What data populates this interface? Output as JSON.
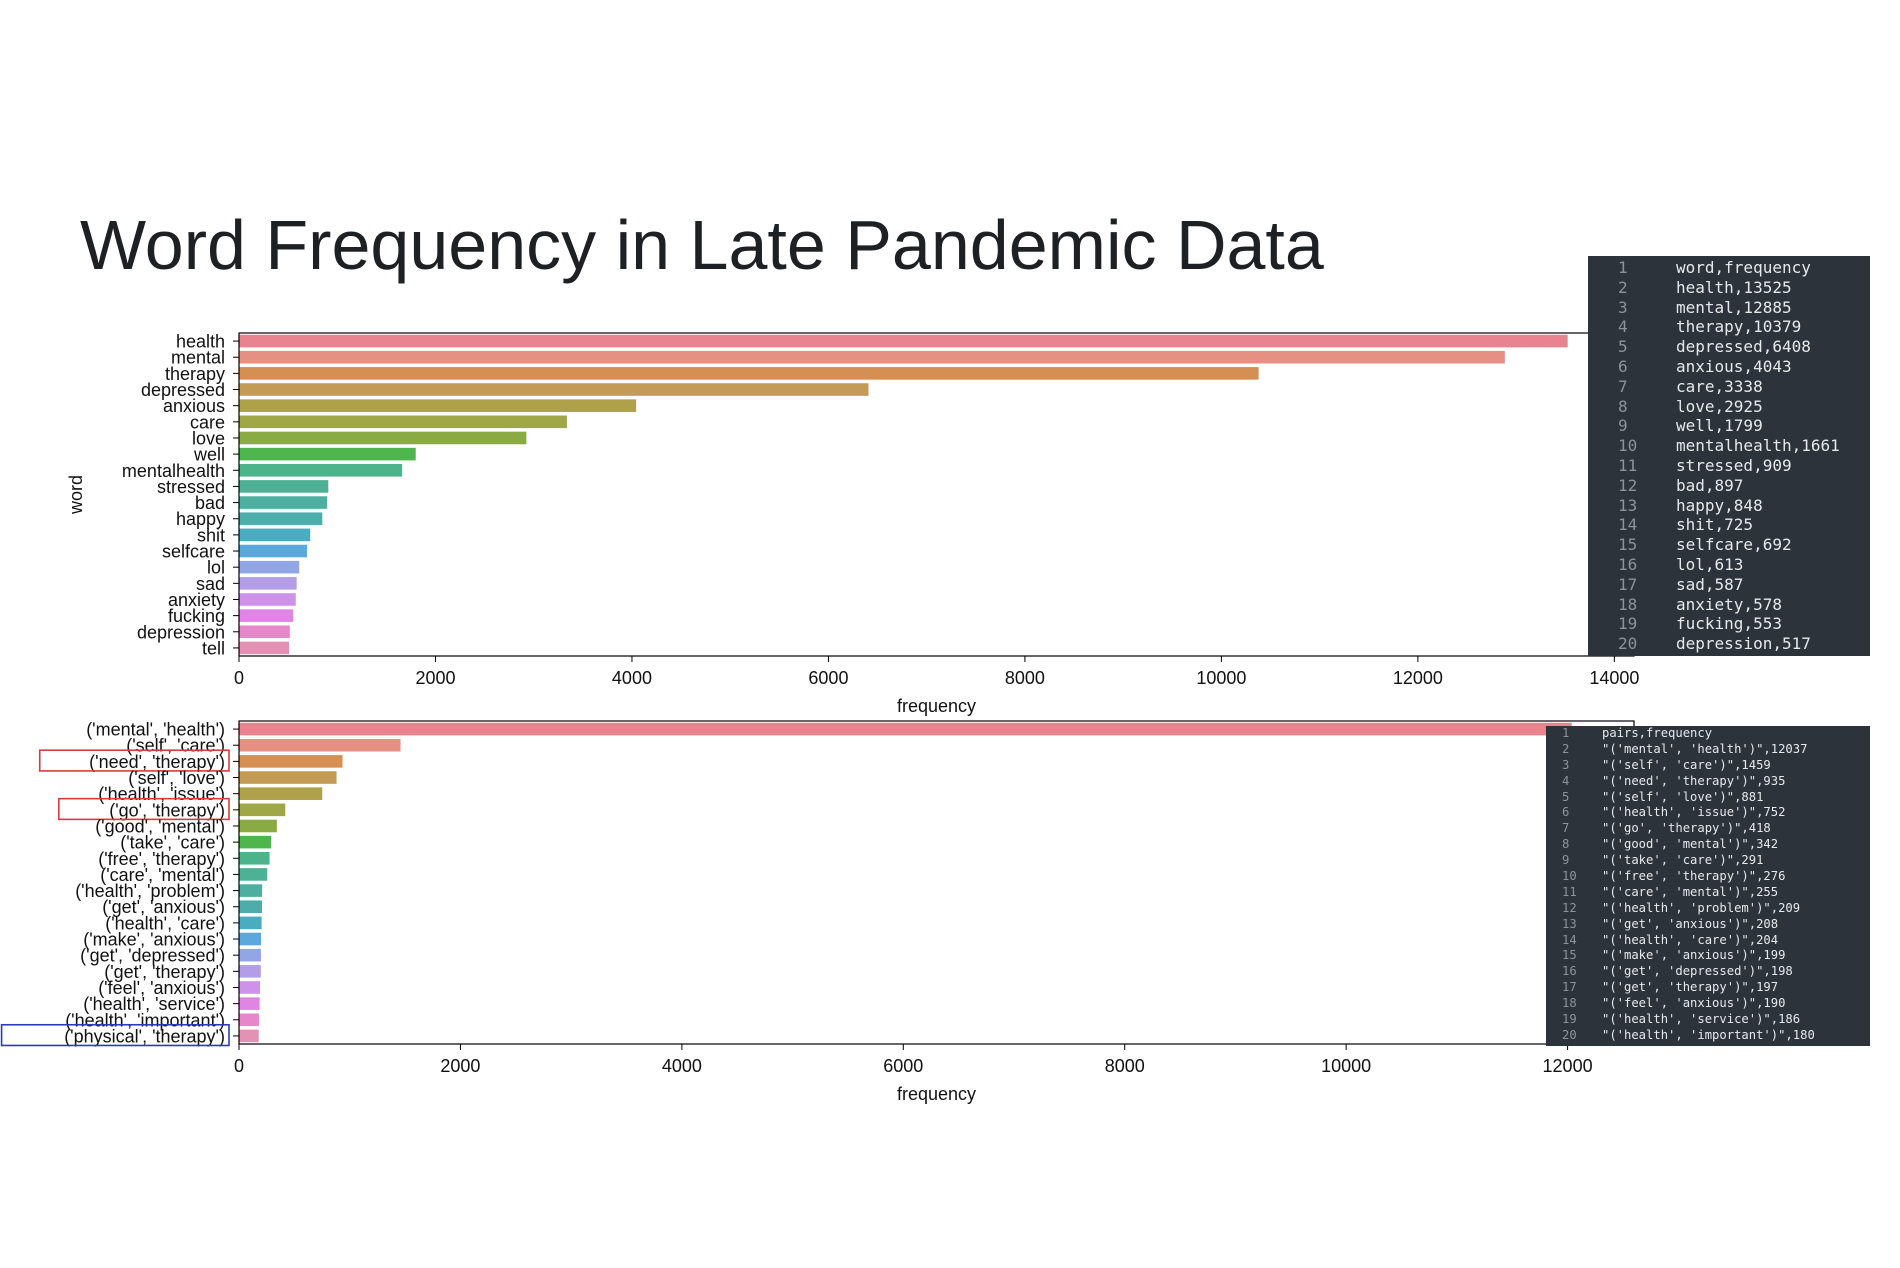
{
  "title": "Word Frequency in Late Pandemic Data",
  "chart_data": [
    {
      "type": "bar",
      "orientation": "horizontal",
      "ylabel": "word",
      "xlabel": "frequency",
      "xlim": [
        0,
        14200
      ],
      "xticks": [
        0,
        2000,
        4000,
        6000,
        8000,
        10000,
        12000,
        14000
      ],
      "categories": [
        "health",
        "mental",
        "therapy",
        "depressed",
        "anxious",
        "care",
        "love",
        "well",
        "mentalhealth",
        "stressed",
        "bad",
        "happy",
        "shit",
        "selfcare",
        "lol",
        "sad",
        "anxiety",
        "fucking",
        "depression",
        "tell"
      ],
      "values": [
        13525,
        12885,
        10379,
        6408,
        4043,
        3338,
        2925,
        1799,
        1661,
        909,
        897,
        848,
        725,
        692,
        613,
        587,
        578,
        553,
        517,
        510
      ],
      "colors": [
        "#e8838f",
        "#e69083",
        "#d68f53",
        "#c39b56",
        "#aea149",
        "#9fa747",
        "#8aaa44",
        "#4fb64d",
        "#4db38b",
        "#4db195",
        "#4cafa0",
        "#4cadaa",
        "#4aacc1",
        "#5aa8dc",
        "#92a6e6",
        "#b49de8",
        "#cf92ea",
        "#e085e3",
        "#e587c9",
        "#e391b5"
      ]
    },
    {
      "type": "bar",
      "orientation": "horizontal",
      "xlabel": "frequency",
      "xlim": [
        0,
        12600
      ],
      "xticks": [
        0,
        2000,
        4000,
        6000,
        8000,
        10000,
        12000
      ],
      "categories": [
        "('mental', 'health')",
        "('self', 'care')",
        "('need', 'therapy')",
        "('self', 'love')",
        "('health', 'issue')",
        "('go', 'therapy')",
        "('good', 'mental')",
        "('take', 'care')",
        "('free', 'therapy')",
        "('care', 'mental')",
        "('health', 'problem')",
        "('get', 'anxious')",
        "('health', 'care')",
        "('make', 'anxious')",
        "('get', 'depressed')",
        "('get', 'therapy')",
        "('feel', 'anxious')",
        "('health', 'service')",
        "('health', 'important')",
        "('physical', 'therapy')"
      ],
      "values": [
        12037,
        1459,
        935,
        881,
        752,
        418,
        342,
        291,
        276,
        255,
        209,
        208,
        204,
        199,
        198,
        197,
        190,
        186,
        180,
        178
      ],
      "colors": [
        "#e8838f",
        "#e69083",
        "#d68f53",
        "#c39b56",
        "#aea149",
        "#9fa747",
        "#8aaa44",
        "#4fb64d",
        "#4db38b",
        "#4db195",
        "#4cafa0",
        "#4cadaa",
        "#4aacc1",
        "#5aa8dc",
        "#92a6e6",
        "#b49de8",
        "#cf92ea",
        "#e085e3",
        "#e587c9",
        "#e391b5"
      ],
      "highlighted_labels": [
        {
          "label": "('need', 'therapy')",
          "color": "#d93b3b"
        },
        {
          "label": "('go', 'therapy')",
          "color": "#d93b3b"
        },
        {
          "label": "('physical', 'therapy')",
          "color": "#2b3bb8"
        }
      ]
    }
  ],
  "code_panels": [
    {
      "lines": [
        "word,frequency",
        "health,13525",
        "mental,12885",
        "therapy,10379",
        "depressed,6408",
        "anxious,4043",
        "care,3338",
        "love,2925",
        "well,1799",
        "mentalhealth,1661",
        "stressed,909",
        "bad,897",
        "happy,848",
        "shit,725",
        "selfcare,692",
        "lol,613",
        "sad,587",
        "anxiety,578",
        "fucking,553",
        "depression,517"
      ]
    },
    {
      "lines": [
        "pairs,frequency",
        "\"('mental', 'health')\",12037",
        "\"('self', 'care')\",1459",
        "\"('need', 'therapy')\",935",
        "\"('self', 'love')\",881",
        "\"('health', 'issue')\",752",
        "\"('go', 'therapy')\",418",
        "\"('good', 'mental')\",342",
        "\"('take', 'care')\",291",
        "\"('free', 'therapy')\",276",
        "\"('care', 'mental')\",255",
        "\"('health', 'problem')\",209",
        "\"('get', 'anxious')\",208",
        "\"('health', 'care')\",204",
        "\"('make', 'anxious')\",199",
        "\"('get', 'depressed')\",198",
        "\"('get', 'therapy')\",197",
        "\"('feel', 'anxious')\",190",
        "\"('health', 'service')\",186",
        "\"('health', 'important')\",180"
      ]
    }
  ],
  "colors": {
    "panel_background": "#2d333b",
    "panel_text": "#e6e9ec",
    "line_numbers": "#8b939c",
    "axis": "#000000",
    "title": "#1e2124"
  }
}
